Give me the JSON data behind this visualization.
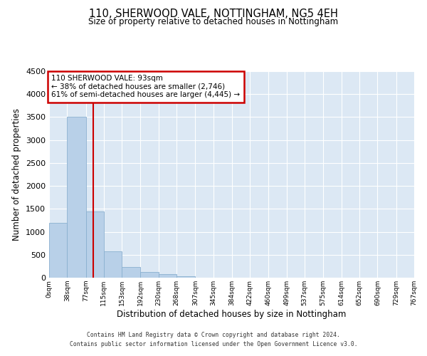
{
  "title_line1": "110, SHERWOOD VALE, NOTTINGHAM, NG5 4EH",
  "title_line2": "Size of property relative to detached houses in Nottingham",
  "xlabel": "Distribution of detached houses by size in Nottingham",
  "ylabel": "Number of detached properties",
  "bar_color": "#b8d0e8",
  "bar_edge_color": "#8ab0d0",
  "bg_color": "#dce8f4",
  "grid_color": "#ffffff",
  "property_line_color": "#cc0000",
  "property_sqm": 93,
  "annotation_text": "110 SHERWOOD VALE: 93sqm\n← 38% of detached houses are smaller (2,746)\n61% of semi-detached houses are larger (4,445) →",
  "annotation_box_color": "#cc0000",
  "bin_edges": [
    0,
    38,
    77,
    115,
    153,
    192,
    230,
    268,
    307,
    345,
    384,
    422,
    460,
    499,
    537,
    575,
    614,
    652,
    690,
    729,
    767
  ],
  "bin_counts": [
    1200,
    3500,
    1450,
    580,
    240,
    120,
    70,
    30,
    5,
    0,
    0,
    0,
    5,
    0,
    0,
    0,
    0,
    0,
    0,
    0
  ],
  "ylim": [
    0,
    4500
  ],
  "yticks": [
    0,
    500,
    1000,
    1500,
    2000,
    2500,
    3000,
    3500,
    4000,
    4500
  ],
  "footer_line1": "Contains HM Land Registry data © Crown copyright and database right 2024.",
  "footer_line2": "Contains public sector information licensed under the Open Government Licence v3.0."
}
